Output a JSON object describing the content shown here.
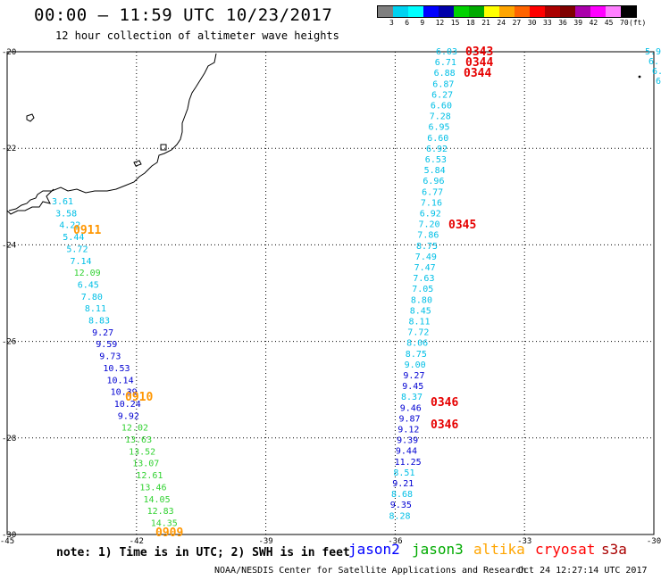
{
  "header": {
    "title": "00:00 – 11:59 UTC 10/23/2017",
    "subtitle": "12 hour collection of altimeter wave heights"
  },
  "colorbar": {
    "colors": [
      "#7f7f7f",
      "#00d2f0",
      "#00ffff",
      "#0000ff",
      "#0000aa",
      "#00d200",
      "#00aa00",
      "#ffff00",
      "#ffa500",
      "#ff6400",
      "#ff0000",
      "#aa0000",
      "#7f0000",
      "#aa00aa",
      "#ff00ff",
      "#ff7fff",
      "#000000"
    ],
    "labels": [
      "3",
      "6",
      "9",
      "12",
      "15",
      "18",
      "21",
      "24",
      "27",
      "30",
      "33",
      "36",
      "39",
      "42",
      "45",
      "70"
    ],
    "unit": "(ft)"
  },
  "axes": {
    "y_ticks": [
      "-20",
      "-22",
      "-24",
      "-26",
      "-28",
      "-30"
    ],
    "x_ticks": [
      "-45",
      "-42",
      "-39",
      "-36",
      "-33",
      "-30"
    ],
    "xlim": [
      -45,
      -30
    ],
    "ylim": [
      -30,
      -20
    ]
  },
  "colors": {
    "jason2": "#0000ff",
    "jason3": "#00aa00",
    "altika": "#ffa500",
    "cryosat": "#ff0000",
    "s3a": "#aa0000"
  },
  "tracks": {
    "west": [
      {
        "t": "3.61",
        "c": "cyan"
      },
      {
        "t": "3.58",
        "c": "cyan"
      },
      {
        "t": "4.22",
        "c": "cyan"
      },
      {
        "t": "5.44",
        "c": "cyan"
      },
      {
        "t": "5.72",
        "c": "cyan"
      },
      {
        "t": "7.14",
        "c": "cyan"
      },
      {
        "t": "12.09",
        "c": "green"
      },
      {
        "t": "6.45",
        "c": "cyan"
      },
      {
        "t": "7.80",
        "c": "cyan"
      },
      {
        "t": "8.11",
        "c": "cyan"
      },
      {
        "t": "8.83",
        "c": "cyan"
      },
      {
        "t": "9.27",
        "c": "blue"
      },
      {
        "t": "9.59",
        "c": "blue"
      },
      {
        "t": "9.73",
        "c": "blue"
      },
      {
        "t": "10.53",
        "c": "blue"
      },
      {
        "t": "10.14",
        "c": "blue"
      },
      {
        "t": "10.39",
        "c": "blue"
      },
      {
        "t": "10.24",
        "c": "blue"
      },
      {
        "t": "9.92",
        "c": "blue"
      },
      {
        "t": "12.02",
        "c": "green"
      },
      {
        "t": "13.63",
        "c": "green"
      },
      {
        "t": "13.52",
        "c": "green"
      },
      {
        "t": "13.07",
        "c": "green"
      },
      {
        "t": "12.61",
        "c": "green"
      },
      {
        "t": "13.46",
        "c": "green"
      },
      {
        "t": "14.05",
        "c": "green"
      },
      {
        "t": "12.83",
        "c": "green"
      },
      {
        "t": "14.35",
        "c": "green"
      }
    ],
    "east": [
      {
        "t": "6.03",
        "c": "cyan"
      },
      {
        "t": "6.71",
        "c": "cyan"
      },
      {
        "t": "6.88",
        "c": "cyan"
      },
      {
        "t": "6.87",
        "c": "cyan"
      },
      {
        "t": "6.27",
        "c": "cyan"
      },
      {
        "t": "6.60",
        "c": "cyan"
      },
      {
        "t": "7.28",
        "c": "cyan"
      },
      {
        "t": "6.95",
        "c": "cyan"
      },
      {
        "t": "6.60",
        "c": "cyan"
      },
      {
        "t": "6.92",
        "c": "cyan"
      },
      {
        "t": "6.53",
        "c": "cyan"
      },
      {
        "t": "5.84",
        "c": "cyan"
      },
      {
        "t": "6.96",
        "c": "cyan"
      },
      {
        "t": "6.77",
        "c": "cyan"
      },
      {
        "t": "7.16",
        "c": "cyan"
      },
      {
        "t": "6.92",
        "c": "cyan"
      },
      {
        "t": "7.20",
        "c": "cyan"
      },
      {
        "t": "7.86",
        "c": "cyan"
      },
      {
        "t": "8.75",
        "c": "cyan"
      },
      {
        "t": "7.49",
        "c": "cyan"
      },
      {
        "t": "7.47",
        "c": "cyan"
      },
      {
        "t": "7.63",
        "c": "cyan"
      },
      {
        "t": "7.05",
        "c": "cyan"
      },
      {
        "t": "8.80",
        "c": "cyan"
      },
      {
        "t": "8.45",
        "c": "cyan"
      },
      {
        "t": "8.11",
        "c": "cyan"
      },
      {
        "t": "7.72",
        "c": "cyan"
      },
      {
        "t": "8.06",
        "c": "cyan"
      },
      {
        "t": "8.75",
        "c": "cyan"
      },
      {
        "t": "9.00",
        "c": "cyan"
      },
      {
        "t": "9.27",
        "c": "blue"
      },
      {
        "t": "9.45",
        "c": "blue"
      },
      {
        "t": "8.37",
        "c": "cyan"
      },
      {
        "t": "9.46",
        "c": "blue"
      },
      {
        "t": "9.87",
        "c": "blue"
      },
      {
        "t": "9.12",
        "c": "blue"
      },
      {
        "t": "9.39",
        "c": "blue"
      },
      {
        "t": "9.44",
        "c": "blue"
      },
      {
        "t": "11.25",
        "c": "blue"
      },
      {
        "t": "8.51",
        "c": "cyan"
      },
      {
        "t": "9.21",
        "c": "blue"
      },
      {
        "t": "8.68",
        "c": "cyan"
      },
      {
        "t": "9.35",
        "c": "blue"
      },
      {
        "t": "8.28",
        "c": "cyan"
      }
    ],
    "edge": [
      {
        "t": "5.9",
        "c": "cyan"
      },
      {
        "t": "6.",
        "c": "cyan"
      },
      {
        "t": "6.",
        "c": "cyan"
      },
      {
        "t": "6",
        "c": "cyan"
      }
    ]
  },
  "times": [
    {
      "t": "0343",
      "c": "red"
    },
    {
      "t": "0344",
      "c": "red"
    },
    {
      "t": "0344",
      "c": "red"
    },
    {
      "t": "0345",
      "c": "red"
    },
    {
      "t": "0346",
      "c": "red"
    },
    {
      "t": "0346",
      "c": "red"
    },
    {
      "t": "0911",
      "c": "orange"
    },
    {
      "t": "0910",
      "c": "orange"
    },
    {
      "t": "0909",
      "c": "orange"
    }
  ],
  "footer": {
    "note": "note: 1) Time is in UTC; 2) SWH is in feet",
    "legend": [
      {
        "label": "jason2",
        "c": "#0000ff"
      },
      {
        "label": "jason3",
        "c": "#00aa00"
      },
      {
        "label": "altika",
        "c": "#ffa500"
      },
      {
        "label": "cryosat",
        "c": "#ff0000"
      },
      {
        "label": "s3a",
        "c": "#aa0000"
      }
    ],
    "credit": "NOAA/NESDIS Center for Satellite Applications and Research",
    "timestamp": "Oct 24 12:27:14 UTC 2017"
  }
}
